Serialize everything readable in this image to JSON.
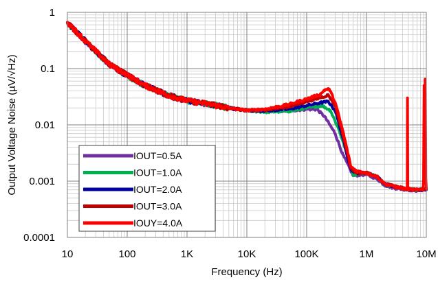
{
  "chart_data": {
    "type": "line",
    "title": "",
    "xlabel": "Frequency (Hz)",
    "ylabel": "Output Voltage Noise (µV/√Hz)",
    "x_scale": "log",
    "y_scale": "log",
    "xlim": [
      10,
      10000000
    ],
    "ylim": [
      0.0001,
      1
    ],
    "grid": true,
    "legend_position": "bottom-left",
    "x_ticks": [
      {
        "value": 10,
        "label": "10"
      },
      {
        "value": 100,
        "label": "100"
      },
      {
        "value": 1000,
        "label": "1K"
      },
      {
        "value": 10000,
        "label": "10K"
      },
      {
        "value": 100000,
        "label": "100K"
      },
      {
        "value": 1000000,
        "label": "1M"
      },
      {
        "value": 10000000,
        "label": "10M"
      }
    ],
    "y_ticks": [
      {
        "value": 1,
        "label": "1"
      },
      {
        "value": 0.1,
        "label": "0.1"
      },
      {
        "value": 0.01,
        "label": "0.01"
      },
      {
        "value": 0.001,
        "label": "0.001"
      },
      {
        "value": 0.0001,
        "label": "0.0001"
      }
    ],
    "series": [
      {
        "name": "IOUT=0.5A",
        "color": "#7030a0",
        "points": [
          [
            10,
            0.65
          ],
          [
            20,
            0.3
          ],
          [
            50,
            0.12
          ],
          [
            100,
            0.075
          ],
          [
            200,
            0.05
          ],
          [
            500,
            0.033
          ],
          [
            1000,
            0.027
          ],
          [
            2000,
            0.024
          ],
          [
            5000,
            0.02
          ],
          [
            10000,
            0.018
          ],
          [
            20000,
            0.0175
          ],
          [
            50000,
            0.0178
          ],
          [
            100000,
            0.019
          ],
          [
            150000,
            0.0188
          ],
          [
            200000,
            0.014
          ],
          [
            300000,
            0.007
          ],
          [
            400000,
            0.003
          ],
          [
            600000,
            0.00125
          ],
          [
            800000,
            0.0013
          ],
          [
            1000000,
            0.0013
          ],
          [
            1500000,
            0.0011
          ],
          [
            2000000,
            0.00085
          ],
          [
            3000000,
            0.00075
          ],
          [
            5000000,
            0.0007
          ],
          [
            7000000,
            0.00068
          ],
          [
            9000000,
            0.0007
          ],
          [
            10000000,
            0.0007
          ]
        ]
      },
      {
        "name": "IOUT=1.0A",
        "color": "#00b050",
        "points": [
          [
            10,
            0.65
          ],
          [
            20,
            0.3
          ],
          [
            50,
            0.12
          ],
          [
            100,
            0.075
          ],
          [
            200,
            0.05
          ],
          [
            500,
            0.033
          ],
          [
            1000,
            0.027
          ],
          [
            2000,
            0.024
          ],
          [
            5000,
            0.02
          ],
          [
            10000,
            0.018
          ],
          [
            20000,
            0.017
          ],
          [
            50000,
            0.0175
          ],
          [
            100000,
            0.02
          ],
          [
            180000,
            0.022
          ],
          [
            250000,
            0.018
          ],
          [
            350000,
            0.008
          ],
          [
            500000,
            0.0025
          ],
          [
            600000,
            0.0013
          ],
          [
            800000,
            0.0014
          ],
          [
            1000000,
            0.0014
          ],
          [
            1500000,
            0.0012
          ],
          [
            2000000,
            0.0009
          ],
          [
            3000000,
            0.0008
          ],
          [
            5000000,
            0.00072
          ],
          [
            7000000,
            0.0007
          ],
          [
            9000000,
            0.00072
          ],
          [
            10000000,
            0.00072
          ]
        ]
      },
      {
        "name": "IOUT=2.0A",
        "color": "#0000a0",
        "points": [
          [
            10,
            0.66
          ],
          [
            20,
            0.31
          ],
          [
            50,
            0.12
          ],
          [
            100,
            0.076
          ],
          [
            200,
            0.05
          ],
          [
            500,
            0.033
          ],
          [
            1000,
            0.027
          ],
          [
            2000,
            0.024
          ],
          [
            5000,
            0.02
          ],
          [
            10000,
            0.018
          ],
          [
            20000,
            0.018
          ],
          [
            50000,
            0.019
          ],
          [
            100000,
            0.022
          ],
          [
            180000,
            0.025
          ],
          [
            230000,
            0.026
          ],
          [
            300000,
            0.018
          ],
          [
            400000,
            0.006
          ],
          [
            550000,
            0.0016
          ],
          [
            700000,
            0.0014
          ],
          [
            1000000,
            0.0014
          ],
          [
            1500000,
            0.0012
          ],
          [
            2000000,
            0.0009
          ],
          [
            3000000,
            0.0008
          ],
          [
            5000000,
            0.00072
          ],
          [
            7000000,
            0.0007
          ],
          [
            9000000,
            0.00072
          ],
          [
            10000000,
            0.00072
          ]
        ]
      },
      {
        "name": "IOUT=3.0A",
        "color": "#c00000",
        "points": [
          [
            10,
            0.66
          ],
          [
            20,
            0.31
          ],
          [
            50,
            0.12
          ],
          [
            100,
            0.076
          ],
          [
            200,
            0.05
          ],
          [
            500,
            0.033
          ],
          [
            1000,
            0.027
          ],
          [
            2000,
            0.024
          ],
          [
            5000,
            0.02
          ],
          [
            10000,
            0.018
          ],
          [
            20000,
            0.0185
          ],
          [
            50000,
            0.021
          ],
          [
            100000,
            0.026
          ],
          [
            180000,
            0.031
          ],
          [
            230000,
            0.034
          ],
          [
            300000,
            0.022
          ],
          [
            400000,
            0.007
          ],
          [
            550000,
            0.0017
          ],
          [
            700000,
            0.0014
          ],
          [
            1000000,
            0.0014
          ],
          [
            1500000,
            0.0012
          ],
          [
            2000000,
            0.0009
          ],
          [
            3000000,
            0.0008
          ],
          [
            5000000,
            0.00072
          ],
          [
            7000000,
            0.0007
          ],
          [
            9000000,
            0.00072
          ],
          [
            10000000,
            0.00072
          ]
        ]
      },
      {
        "name": "IOUY=4.0A",
        "color": "#ff0000",
        "points": [
          [
            10,
            0.67
          ],
          [
            20,
            0.31
          ],
          [
            50,
            0.12
          ],
          [
            100,
            0.077
          ],
          [
            200,
            0.05
          ],
          [
            500,
            0.033
          ],
          [
            1000,
            0.027
          ],
          [
            2000,
            0.024
          ],
          [
            5000,
            0.02
          ],
          [
            10000,
            0.018
          ],
          [
            20000,
            0.019
          ],
          [
            50000,
            0.023
          ],
          [
            100000,
            0.029
          ],
          [
            170000,
            0.035
          ],
          [
            200000,
            0.042
          ],
          [
            240000,
            0.043
          ],
          [
            300000,
            0.025
          ],
          [
            400000,
            0.008
          ],
          [
            550000,
            0.0018
          ],
          [
            700000,
            0.0015
          ],
          [
            1000000,
            0.0014
          ],
          [
            1500000,
            0.0012
          ],
          [
            2000000,
            0.0009
          ],
          [
            3000000,
            0.0008
          ],
          [
            4500000,
            0.00072
          ],
          [
            4800000,
            0.00075
          ],
          [
            4850000,
            0.03
          ],
          [
            4900000,
            0.0008
          ],
          [
            5000000,
            0.00072
          ],
          [
            7000000,
            0.0007
          ],
          [
            8800000,
            0.00072
          ],
          [
            9000000,
            0.001
          ],
          [
            9200000,
            0.05
          ],
          [
            9350000,
            0.0012
          ],
          [
            9500000,
            0.008
          ],
          [
            9600000,
            0.065
          ],
          [
            9800000,
            0.0011
          ],
          [
            10000000,
            0.00075
          ]
        ]
      }
    ]
  }
}
